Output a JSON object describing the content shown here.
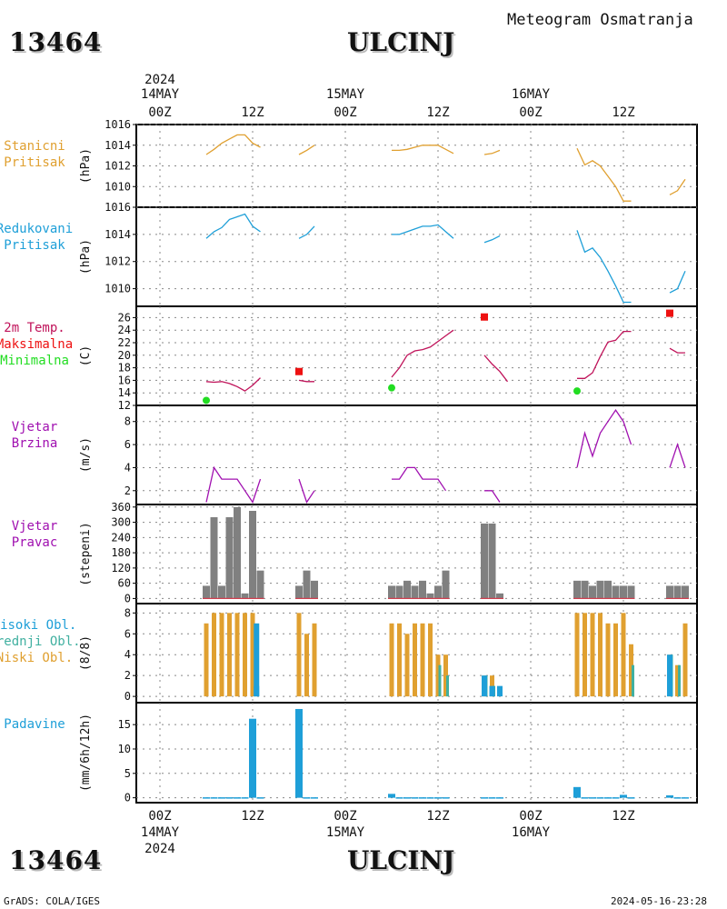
{
  "header": {
    "station_id": "13464",
    "station_name": "ULCINJ",
    "subtitle": "Meteogram Osmatranja"
  },
  "footer": {
    "left": "GrADS: COLA/IGES",
    "right": "2024-05-16-23:28"
  },
  "time_axis": {
    "year": "2024",
    "top_ticks": [
      {
        "h": 0,
        "line1": "14MAY",
        "line2": "00Z"
      },
      {
        "h": 12,
        "line1": "",
        "line2": "12Z"
      },
      {
        "h": 24,
        "line1": "15MAY",
        "line2": "00Z"
      },
      {
        "h": 36,
        "line1": "",
        "line2": "12Z"
      },
      {
        "h": 48,
        "line1": "16MAY",
        "line2": "00Z"
      },
      {
        "h": 60,
        "line1": "",
        "line2": "12Z"
      }
    ],
    "bottom_ticks": [
      {
        "h": 0,
        "line1": "00Z",
        "line2": "14MAY"
      },
      {
        "h": 12,
        "line1": "12Z",
        "line2": ""
      },
      {
        "h": 24,
        "line1": "00Z",
        "line2": "15MAY"
      },
      {
        "h": 36,
        "line1": "12Z",
        "line2": ""
      },
      {
        "h": 48,
        "line1": "00Z",
        "line2": "16MAY"
      },
      {
        "h": 60,
        "line1": "12Z",
        "line2": ""
      }
    ]
  },
  "colors": {
    "station_pressure": "#e0a030",
    "reduced_pressure": "#1e9fd8",
    "temperature": "#c0135a",
    "tmax": "#ee1111",
    "tmin": "#22dd22",
    "wind": "#a010b0",
    "wind_dir_bar": "#808080",
    "wind_dir_base": "#d04050",
    "cloud_high": "#1e9fd8",
    "cloud_mid": "#40b0a0",
    "cloud_low": "#e0a030",
    "precip": "#1e9fd8"
  },
  "chart_data": [
    {
      "id": "station_pressure",
      "type": "line",
      "labels": [
        "Stanicni",
        "Pritisak"
      ],
      "ylabel": "(hPa)",
      "yticks": [
        1010,
        1012,
        1014,
        1016
      ],
      "ylim": [
        1008,
        1016
      ],
      "segments": [
        [
          [
            6,
            1013.1
          ],
          [
            7,
            1013.6
          ],
          [
            8,
            1014.2
          ],
          [
            9,
            1014.6
          ],
          [
            10,
            1015.0
          ],
          [
            11,
            1015.0
          ],
          [
            12,
            1014.2
          ],
          [
            13,
            1013.8
          ]
        ],
        [
          [
            18,
            1013.1
          ],
          [
            19,
            1013.5
          ],
          [
            20,
            1014.0
          ]
        ],
        [
          [
            30,
            1013.5
          ],
          [
            31,
            1013.5
          ],
          [
            32,
            1013.6
          ],
          [
            33,
            1013.8
          ],
          [
            34,
            1014.0
          ],
          [
            35,
            1014.0
          ],
          [
            36,
            1014.0
          ],
          [
            37,
            1013.6
          ],
          [
            38,
            1013.2
          ]
        ],
        [
          [
            42,
            1013.1
          ],
          [
            43,
            1013.2
          ],
          [
            44,
            1013.5
          ]
        ],
        [
          [
            54,
            1013.7
          ],
          [
            55,
            1012.1
          ],
          [
            56,
            1012.5
          ],
          [
            57,
            1012.0
          ],
          [
            58,
            1011.0
          ],
          [
            59,
            1010.0
          ],
          [
            60,
            1008.6
          ],
          [
            61,
            1008.6
          ]
        ],
        [
          [
            66,
            1009.2
          ],
          [
            67,
            1009.6
          ],
          [
            68,
            1010.7
          ]
        ]
      ]
    },
    {
      "id": "reduced_pressure",
      "type": "line",
      "labels": [
        "Redukovani",
        "Pritisak"
      ],
      "ylabel": "(hPa)",
      "yticks": [
        1010,
        1012,
        1014,
        1016
      ],
      "ylim": [
        1008.7,
        1016
      ],
      "segments": [
        [
          [
            6,
            1013.7
          ],
          [
            7,
            1014.2
          ],
          [
            8,
            1014.5
          ],
          [
            9,
            1015.1
          ],
          [
            10,
            1015.3
          ],
          [
            11,
            1015.5
          ],
          [
            12,
            1014.6
          ],
          [
            13,
            1014.2
          ]
        ],
        [
          [
            18,
            1013.7
          ],
          [
            19,
            1014.0
          ],
          [
            20,
            1014.6
          ]
        ],
        [
          [
            30,
            1014.0
          ],
          [
            31,
            1014.0
          ],
          [
            32,
            1014.2
          ],
          [
            33,
            1014.4
          ],
          [
            34,
            1014.6
          ],
          [
            35,
            1014.6
          ],
          [
            36,
            1014.7
          ],
          [
            37,
            1014.2
          ],
          [
            38,
            1013.7
          ]
        ],
        [
          [
            42,
            1013.4
          ],
          [
            43,
            1013.6
          ],
          [
            44,
            1013.9
          ]
        ],
        [
          [
            54,
            1014.3
          ],
          [
            55,
            1012.7
          ],
          [
            56,
            1013.0
          ],
          [
            57,
            1012.3
          ],
          [
            58,
            1011.3
          ],
          [
            59,
            1010.2
          ],
          [
            60,
            1009.0
          ],
          [
            61,
            1009.0
          ]
        ],
        [
          [
            66,
            1009.7
          ],
          [
            67,
            1010.0
          ],
          [
            68,
            1011.3
          ]
        ]
      ]
    },
    {
      "id": "temperature",
      "type": "line",
      "labels": [
        "2m Temp.",
        "Maksimalna",
        "Minimalna"
      ],
      "ylabel": "(C)",
      "yticks": [
        12,
        14,
        16,
        18,
        20,
        22,
        24,
        26
      ],
      "ylim": [
        12,
        27.8
      ],
      "segments": [
        [
          [
            6,
            15.8
          ],
          [
            7,
            15.7
          ],
          [
            8,
            15.8
          ],
          [
            9,
            15.5
          ],
          [
            10,
            15.0
          ],
          [
            11,
            14.3
          ],
          [
            12,
            15.2
          ],
          [
            13,
            16.4
          ]
        ],
        [
          [
            18,
            16.0
          ],
          [
            19,
            15.8
          ],
          [
            20,
            15.8
          ]
        ],
        [
          [
            30,
            16.5
          ],
          [
            31,
            18.0
          ],
          [
            32,
            20.0
          ],
          [
            33,
            20.7
          ],
          [
            34,
            20.9
          ],
          [
            35,
            21.3
          ],
          [
            36,
            22.2
          ],
          [
            37,
            23.1
          ],
          [
            38,
            24.0
          ]
        ],
        [
          [
            42,
            20.0
          ],
          [
            43,
            18.6
          ],
          [
            44,
            17.4
          ],
          [
            45,
            15.8
          ]
        ],
        [
          [
            54,
            16.3
          ],
          [
            55,
            16.3
          ],
          [
            56,
            17.2
          ],
          [
            57,
            19.8
          ],
          [
            58,
            22.1
          ],
          [
            59,
            22.4
          ],
          [
            60,
            23.8
          ],
          [
            61,
            23.8
          ]
        ],
        [
          [
            66,
            21.1
          ],
          [
            67,
            20.4
          ],
          [
            68,
            20.4
          ]
        ]
      ],
      "tmax": [
        [
          18,
          17.4
        ],
        [
          42,
          26.1
        ],
        [
          66,
          26.7
        ]
      ],
      "tmin": [
        [
          6,
          12.8
        ],
        [
          30,
          14.8
        ],
        [
          54,
          14.3
        ]
      ]
    },
    {
      "id": "wind_speed",
      "type": "line",
      "labels": [
        "Vjetar",
        "Brzina"
      ],
      "ylabel": "(m/s)",
      "yticks": [
        2,
        4,
        6,
        8
      ],
      "ylim": [
        0.8,
        9.4
      ],
      "segments": [
        [
          [
            6,
            1.0
          ],
          [
            7,
            4.0
          ],
          [
            8,
            3.0
          ],
          [
            9,
            3.0
          ],
          [
            10,
            3.0
          ],
          [
            11,
            2.0
          ],
          [
            12,
            1.0
          ],
          [
            13,
            3.0
          ]
        ],
        [
          [
            18,
            3.0
          ],
          [
            19,
            1.0
          ],
          [
            20,
            2.0
          ]
        ],
        [
          [
            30,
            3.0
          ],
          [
            31,
            3.0
          ],
          [
            32,
            4.0
          ],
          [
            33,
            4.0
          ],
          [
            34,
            3.0
          ],
          [
            35,
            3.0
          ],
          [
            36,
            3.0
          ],
          [
            37,
            2.0
          ]
        ],
        [
          [
            42,
            2.0
          ],
          [
            43,
            2.0
          ],
          [
            44,
            1.0
          ]
        ],
        [
          [
            54,
            4.0
          ],
          [
            55,
            7.0
          ],
          [
            56,
            5.0
          ],
          [
            57,
            7.0
          ],
          [
            58,
            8.0
          ],
          [
            59,
            9.0
          ],
          [
            60,
            8.0
          ],
          [
            61,
            6.0
          ]
        ],
        [
          [
            66,
            4.0
          ],
          [
            67,
            6.0
          ],
          [
            68,
            4.0
          ]
        ]
      ]
    },
    {
      "id": "wind_direction",
      "type": "bar",
      "labels": [
        "Vjetar",
        "Pravac"
      ],
      "ylabel": "(stepeni)",
      "yticks": [
        0,
        60,
        120,
        180,
        240,
        300,
        360
      ],
      "ylim": [
        -20,
        370
      ],
      "bars": [
        [
          6,
          50
        ],
        [
          7,
          320
        ],
        [
          8,
          50
        ],
        [
          9,
          320
        ],
        [
          10,
          360
        ],
        [
          11,
          20
        ],
        [
          12,
          345
        ],
        [
          13,
          110
        ],
        [
          18,
          50
        ],
        [
          19,
          110
        ],
        [
          20,
          70
        ],
        [
          30,
          50
        ],
        [
          31,
          50
        ],
        [
          32,
          70
        ],
        [
          33,
          50
        ],
        [
          34,
          70
        ],
        [
          35,
          20
        ],
        [
          36,
          50
        ],
        [
          37,
          110
        ],
        [
          42,
          295
        ],
        [
          43,
          295
        ],
        [
          44,
          20
        ],
        [
          54,
          70
        ],
        [
          55,
          70
        ],
        [
          56,
          50
        ],
        [
          57,
          70
        ],
        [
          58,
          70
        ],
        [
          59,
          50
        ],
        [
          60,
          50
        ],
        [
          61,
          50
        ],
        [
          66,
          50
        ],
        [
          67,
          50
        ],
        [
          68,
          50
        ]
      ]
    },
    {
      "id": "clouds",
      "type": "bar",
      "labels": [
        "Visoki Obl.",
        "Srednji Obl.",
        "Niski Obl."
      ],
      "ylabel": "(8/8)",
      "yticks": [
        0,
        2,
        4,
        6,
        8
      ],
      "ylim": [
        -0.6,
        8.9
      ],
      "low": [
        [
          6,
          7
        ],
        [
          7,
          8
        ],
        [
          8,
          8
        ],
        [
          9,
          8
        ],
        [
          10,
          8
        ],
        [
          11,
          8
        ],
        [
          12,
          8
        ],
        [
          18,
          8
        ],
        [
          19,
          6
        ],
        [
          20,
          7
        ],
        [
          30,
          7
        ],
        [
          31,
          7
        ],
        [
          32,
          6
        ],
        [
          33,
          7
        ],
        [
          34,
          7
        ],
        [
          35,
          7
        ],
        [
          36,
          4
        ],
        [
          37,
          4
        ],
        [
          42,
          2
        ],
        [
          43,
          2
        ],
        [
          54,
          8
        ],
        [
          55,
          8
        ],
        [
          56,
          8
        ],
        [
          57,
          8
        ],
        [
          58,
          7
        ],
        [
          59,
          7
        ],
        [
          60,
          8
        ],
        [
          61,
          5
        ],
        [
          66,
          4
        ],
        [
          67,
          3
        ],
        [
          68,
          7
        ]
      ],
      "mid": [
        [
          36,
          3
        ],
        [
          37,
          2
        ],
        [
          42,
          2
        ],
        [
          43,
          1
        ],
        [
          61,
          3
        ],
        [
          66,
          4
        ],
        [
          67,
          3
        ]
      ],
      "high": [
        [
          12.5,
          7
        ],
        [
          12.5,
          1
        ],
        [
          42,
          2
        ],
        [
          43,
          1
        ],
        [
          44,
          1
        ],
        [
          66,
          4
        ]
      ]
    },
    {
      "id": "precipitation",
      "type": "bar",
      "labels": [
        "Padavine"
      ],
      "ylabel": "(mm/6h/12h)",
      "yticks": [
        0,
        5,
        10,
        15
      ],
      "ylim": [
        -1,
        19.5
      ],
      "bars": [
        [
          6,
          0.1
        ],
        [
          7,
          0.1
        ],
        [
          8,
          0.1
        ],
        [
          9,
          0.1
        ],
        [
          10,
          0.1
        ],
        [
          11,
          0.1
        ],
        [
          12,
          16.2
        ],
        [
          13,
          0.1
        ],
        [
          18,
          18.2
        ],
        [
          19,
          0.1
        ],
        [
          20,
          0.1
        ],
        [
          30,
          0.8
        ],
        [
          31,
          0.1
        ],
        [
          32,
          0.1
        ],
        [
          33,
          0.1
        ],
        [
          34,
          0.1
        ],
        [
          35,
          0.1
        ],
        [
          36,
          0.1
        ],
        [
          37,
          0.1
        ],
        [
          42,
          0.1
        ],
        [
          43,
          0.1
        ],
        [
          44,
          0.1
        ],
        [
          54,
          2.2
        ],
        [
          55,
          0.1
        ],
        [
          56,
          0.1
        ],
        [
          57,
          0.1
        ],
        [
          58,
          0.1
        ],
        [
          59,
          0.1
        ],
        [
          60,
          0.6
        ],
        [
          61,
          0.1
        ],
        [
          66,
          0.5
        ],
        [
          67,
          0.1
        ],
        [
          68,
          0.1
        ]
      ]
    }
  ]
}
